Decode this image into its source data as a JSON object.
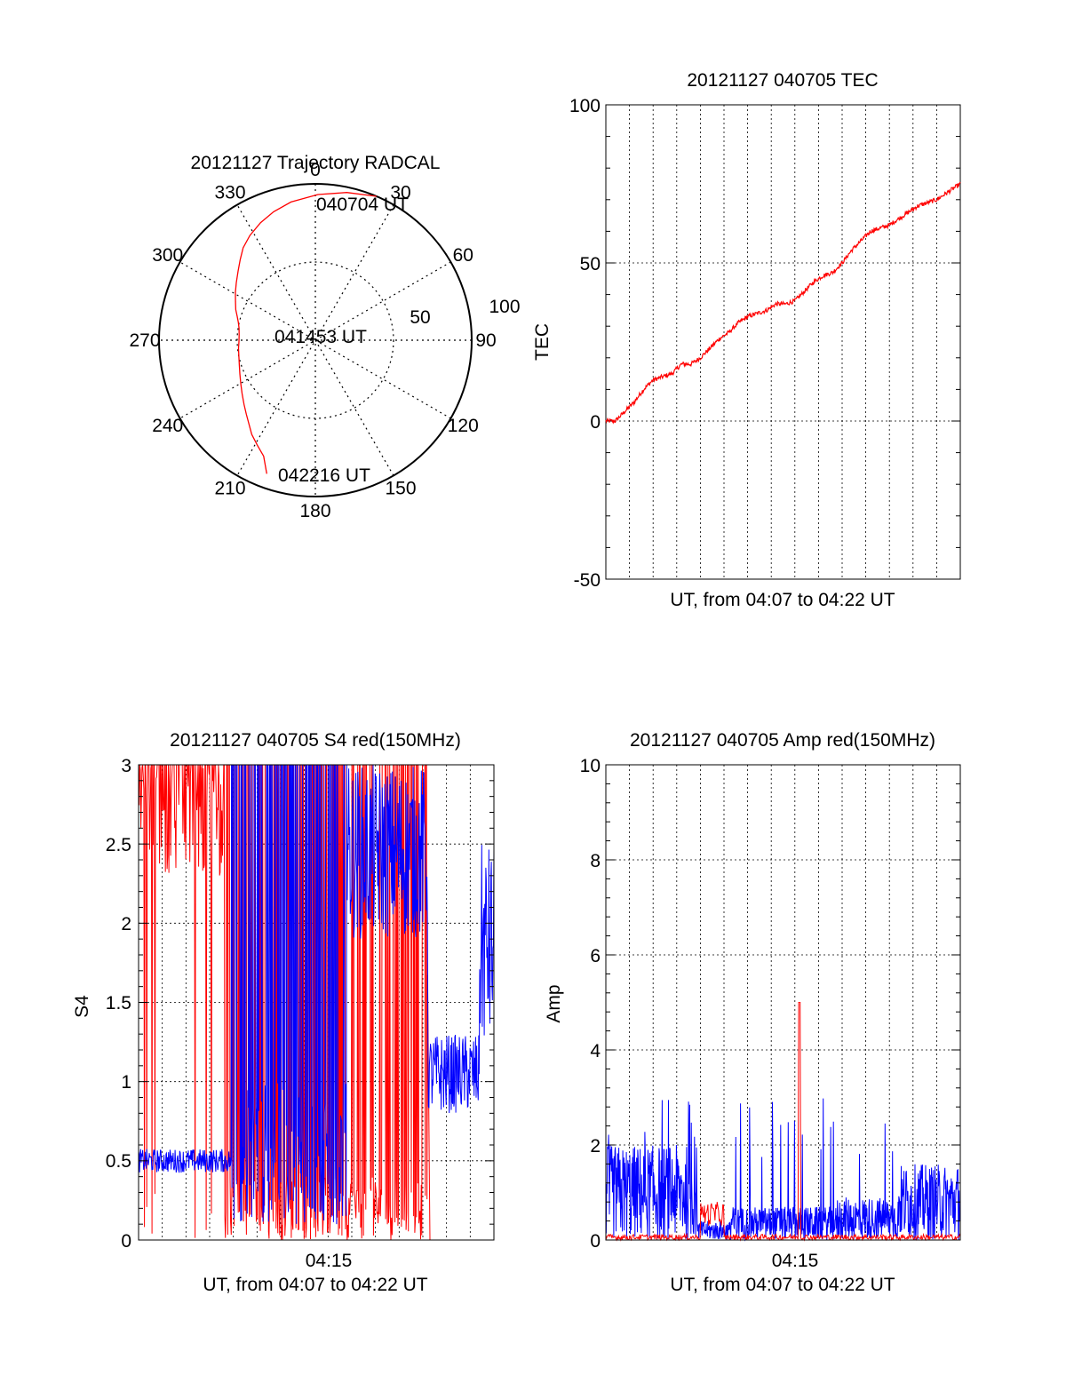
{
  "chart_data": [
    {
      "type": "polar",
      "title": "20121127 Trajectory RADCAL",
      "azimuth_labels": [
        "0",
        "30",
        "60",
        "90",
        "120",
        "150",
        "180",
        "210",
        "240",
        "270",
        "300",
        "330"
      ],
      "elevation_labels": [
        "50",
        "100"
      ],
      "track": {
        "color": "#ff0000",
        "az": [
          23,
          12,
          1,
          -10,
          -18,
          -25,
          -32,
          -38,
          -43,
          -48,
          -54,
          -59,
          -64,
          -69,
          -73,
          -77,
          -81,
          -86,
          -91,
          -96,
          -102,
          -108,
          -114,
          -120,
          -126,
          -132,
          -137,
          -142,
          -146,
          -151,
          -156,
          -160
        ],
        "r": [
          176,
          170,
          164,
          158,
          152,
          146,
          139,
          132,
          124,
          117,
          110,
          105,
          100,
          96,
          92,
          89,
          87,
          86,
          86,
          87,
          88,
          90,
          93,
          97,
          102,
          108,
          114,
          121,
          128,
          135,
          143,
          160
        ]
      },
      "annotations": {
        "start": "040704 UT",
        "mid": "041453 UT",
        "end": "042216 UT"
      }
    },
    {
      "type": "line",
      "title": "20121127 040705 TEC",
      "ylabel": "TEC",
      "xlabel": "UT, from 04:07 to 04:22 UT",
      "ylim": [
        -50,
        100
      ],
      "yticks": [
        "100",
        "50",
        "0",
        "-50"
      ],
      "series": [
        {
          "color": "#ff0000",
          "x": [
            0,
            0.4,
            0.8,
            1.2,
            1.6,
            2.0,
            2.4,
            2.8,
            3.2,
            3.6,
            4.0,
            4.4,
            4.8,
            5.2,
            5.6,
            6.0,
            6.4,
            6.8,
            7.2,
            7.6,
            8.0,
            8.4,
            8.8,
            9.2,
            9.6,
            10.0,
            10.4,
            10.8,
            11.2,
            11.6,
            12.0,
            12.4,
            12.8,
            13.2,
            13.6,
            14.0,
            14.4,
            14.8,
            15.0
          ],
          "values": [
            0,
            0,
            3,
            6,
            10,
            13,
            14,
            15,
            18,
            18,
            20,
            23,
            26,
            28,
            31,
            33,
            34,
            35,
            37,
            37,
            38,
            41,
            44,
            46,
            47,
            50,
            54,
            57,
            60,
            61,
            62,
            64,
            66,
            68,
            69,
            70,
            72,
            74,
            75
          ]
        }
      ]
    },
    {
      "type": "line",
      "title": "20121127 040705 S4 red(150MHz)",
      "ylabel": "S4",
      "xlabel": "UT, from 04:07 to 04:22 UT",
      "xtick": "04:15",
      "ylim": [
        0,
        3
      ],
      "yticks": [
        "3",
        "2.5",
        "2",
        "1.5",
        "1",
        "0.5",
        "0"
      ],
      "series": [
        {
          "color": "#ff0000",
          "x": [
            0,
            12.3
          ],
          "noise": "red S4 samples, saturated to 3 with deep dropouts until about 04:19"
        },
        {
          "color": "#0000ff",
          "x": [
            0,
            15
          ],
          "noise": "blue S4 samples, near 0.5 early, saturated mid-interval, ~1 to 2 late"
        }
      ]
    },
    {
      "type": "line",
      "title": "20121127 040705 Amp red(150MHz)",
      "ylabel": "Amp",
      "xlabel": "UT, from 04:07 to 04:22 UT",
      "xtick": "04:15",
      "ylim": [
        0,
        10
      ],
      "yticks": [
        "10",
        "8",
        "6",
        "4",
        "2",
        "0"
      ],
      "series": [
        {
          "color": "#0000ff",
          "x": [
            0,
            15
          ],
          "noise": "blue amplitude, dense band up to ~2 early, spikes mid, up to ~1.5 late"
        },
        {
          "color": "#ff0000",
          "x": [
            0,
            15
          ],
          "noise": "red amplitude near 0 with a spike to 5 near 04:15"
        }
      ]
    }
  ]
}
